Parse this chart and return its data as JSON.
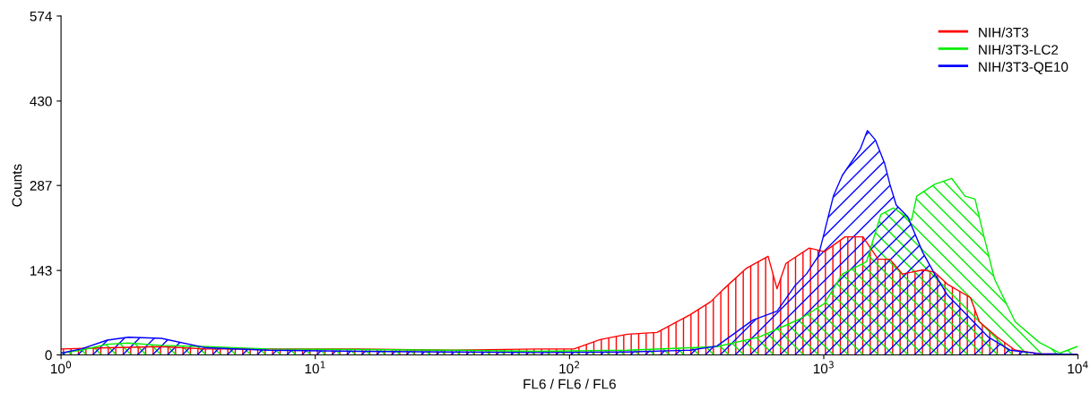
{
  "chart_data": {
    "type": "area",
    "xlabel": "FL6 / FL6 / FL6",
    "ylabel": "Counts",
    "log": "x",
    "grid": false,
    "legend": "top right",
    "xlim": [
      1,
      10000
    ],
    "xticks": [
      {
        "value": 1,
        "label": "10$^{0}$"
      },
      {
        "value": 10,
        "label": "10$^{1}$"
      },
      {
        "value": 100,
        "label": "10$^{2}$"
      },
      {
        "value": 1000,
        "label": "10$^{3}$"
      },
      {
        "value": 10000,
        "label": "10$^{4}$"
      }
    ],
    "ylim": [
      0,
      574
    ],
    "yticks": [
      0,
      143,
      287,
      430,
      574
    ],
    "series": [
      {
        "name": "NIH/3T3",
        "color": "#ff0000",
        "x": [
          1,
          1.52,
          2.48,
          3.72,
          6.57,
          14.8,
          33.3,
          75,
          104,
          132,
          169,
          221,
          298,
          359,
          405,
          497,
          604,
          655,
          710,
          877,
          1006,
          1213,
          1426,
          1636,
          1820,
          2039,
          2455,
          2730,
          3057,
          3774,
          4093,
          4817,
          5662,
          7047,
          9915
        ],
        "values": [
          10,
          12,
          14,
          10,
          10,
          10,
          8,
          10,
          10,
          26,
          35,
          38,
          68,
          90,
          112,
          147,
          167,
          112,
          155,
          181,
          175,
          200,
          200,
          162,
          162,
          137,
          144,
          140,
          120,
          97,
          56,
          30,
          8,
          2,
          1
        ]
      },
      {
        "name": "NIH/3T3-LC2",
        "color": "#00ee00",
        "x": [
          1,
          1.2,
          1.52,
          1.84,
          2.48,
          3.72,
          6.57,
          14.8,
          33.3,
          75,
          169,
          298,
          380,
          556,
          808,
          1006,
          1183,
          1473,
          1678,
          1879,
          2213,
          2322,
          2730,
          3184,
          3594,
          3935,
          4227,
          4699,
          5662,
          7047,
          8503,
          9915
        ],
        "values": [
          3,
          8,
          18,
          20,
          16,
          14,
          10,
          9,
          8,
          6,
          8,
          12,
          14,
          30,
          61,
          87,
          137,
          158,
          238,
          249,
          228,
          269,
          289,
          299,
          269,
          264,
          208,
          128,
          56,
          21,
          3,
          14
        ]
      },
      {
        "name": "NIH/3T3-QE10",
        "color": "#0000ff",
        "x": [
          1,
          1.2,
          1.52,
          1.84,
          2.48,
          3.72,
          6.57,
          14.8,
          33.3,
          75,
          169,
          298,
          380,
          526,
          655,
          770,
          855,
          951,
          1006,
          1091,
          1183,
          1393,
          1485,
          1597,
          1734,
          1820,
          1927,
          2140,
          2455,
          2730,
          3057,
          3594,
          4444,
          5400,
          7047,
          9915
        ],
        "values": [
          3,
          10,
          25,
          30,
          28,
          12,
          8,
          6,
          5,
          4,
          5,
          8,
          15,
          59,
          74,
          117,
          137,
          167,
          208,
          269,
          304,
          349,
          380,
          364,
          325,
          289,
          254,
          234,
          173,
          137,
          102,
          71,
          30,
          8,
          2,
          1
        ]
      }
    ]
  }
}
